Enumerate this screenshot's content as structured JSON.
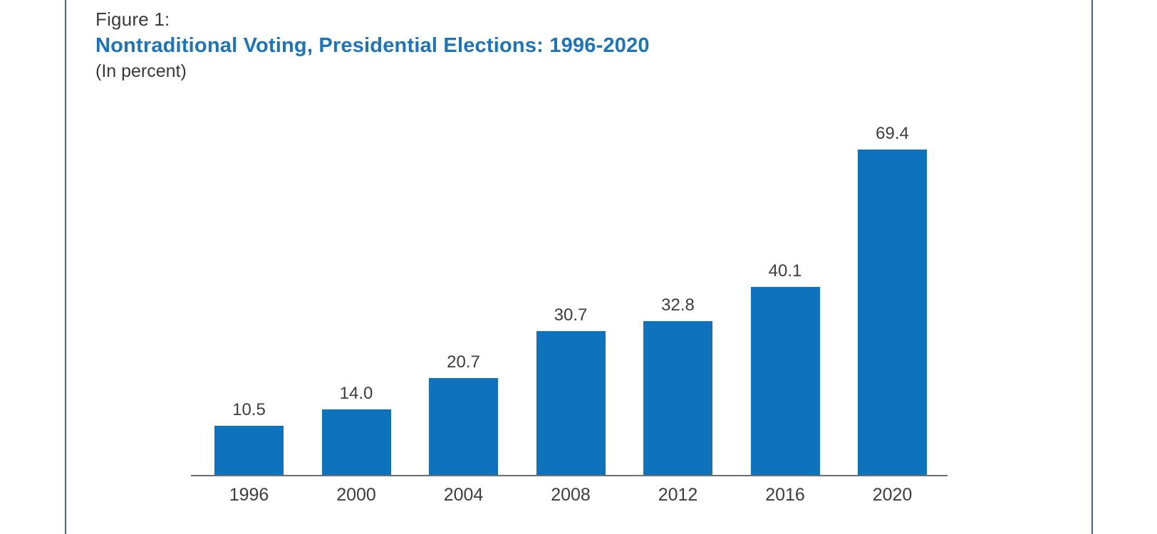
{
  "page": {
    "background_color": "#ffffff",
    "side_rule_color": "#41698f"
  },
  "figure": {
    "label": "Figure 1:",
    "title": "Nontraditional Voting, Presidential Elections: 1996-2020",
    "units_note": "(In percent)",
    "title_color": "#1b74bc",
    "text_color": "#3a3a3a"
  },
  "chart_data": {
    "type": "bar",
    "title": "Nontraditional Voting, Presidential Elections: 1996-2020",
    "subtitle": "(In percent)",
    "categories": [
      "1996",
      "2000",
      "2004",
      "2008",
      "2012",
      "2016",
      "2020"
    ],
    "values": [
      10.5,
      14.0,
      20.7,
      30.7,
      32.8,
      40.1,
      69.4
    ],
    "value_labels": [
      "10.5",
      "14.0",
      "20.7",
      "30.7",
      "32.8",
      "40.1",
      "69.4"
    ],
    "xlabel": "",
    "ylabel": "(In percent)",
    "ylim": [
      0,
      78
    ],
    "grid": false,
    "legend": false,
    "y_axis_shown": false,
    "data_labels_position": "above-bars",
    "bar_color": "#0f72bc",
    "label_color": "#3d3d3d",
    "axis_line_color": "#6e6e6e"
  }
}
